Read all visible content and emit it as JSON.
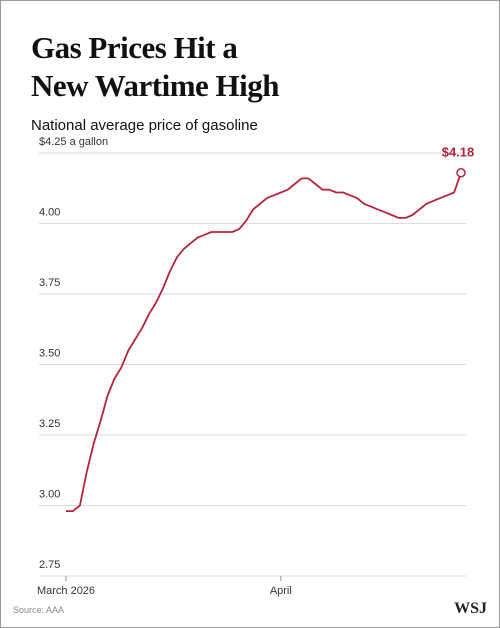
{
  "chart_data": {
    "type": "line",
    "title": "Gas Prices Hit a New Wartime High",
    "subtitle": "National average price of gasoline",
    "source": "Source: AAA",
    "logo": "WSJ",
    "color": "#b5253a",
    "grid": true,
    "categories": [
      "March 2026",
      null,
      null,
      null,
      null,
      null,
      null,
      null,
      null,
      null,
      null,
      null,
      null,
      null,
      null,
      null,
      null,
      null,
      null,
      null,
      null,
      null,
      null,
      null,
      null,
      null,
      null,
      null,
      null,
      null,
      null,
      "April",
      null,
      null,
      null,
      null,
      null,
      null,
      null,
      null,
      null,
      null,
      null,
      null,
      null,
      null,
      null,
      null,
      null,
      null,
      null,
      null,
      null,
      null,
      null,
      null,
      null,
      null
    ],
    "values": [
      2.98,
      2.98,
      3.0,
      3.12,
      3.22,
      3.3,
      3.39,
      3.45,
      3.49,
      3.55,
      3.59,
      3.63,
      3.68,
      3.72,
      3.77,
      3.83,
      3.88,
      3.91,
      3.93,
      3.95,
      3.96,
      3.97,
      3.97,
      3.97,
      3.97,
      3.98,
      4.01,
      4.05,
      4.07,
      4.09,
      4.1,
      4.11,
      4.12,
      4.14,
      4.16,
      4.16,
      4.14,
      4.12,
      4.12,
      4.11,
      4.11,
      4.1,
      4.09,
      4.07,
      4.06,
      4.05,
      4.04,
      4.03,
      4.02,
      4.02,
      4.03,
      4.05,
      4.07,
      4.08,
      4.09,
      4.1,
      4.11,
      4.18
    ],
    "value_labels": [
      null,
      null,
      null,
      null,
      null,
      null,
      null,
      null,
      null,
      null,
      null,
      null,
      null,
      null,
      null,
      null,
      null,
      null,
      null,
      null,
      null,
      null,
      null,
      null,
      null,
      null,
      null,
      null,
      null,
      null,
      null,
      null,
      null,
      null,
      null,
      null,
      null,
      null,
      null,
      null,
      null,
      null,
      null,
      null,
      null,
      null,
      null,
      null,
      null,
      null,
      null,
      null,
      null,
      null,
      null,
      null,
      null,
      "$4.18"
    ],
    "ylim": [
      2.75,
      4.25
    ],
    "yticks": [
      2.75,
      {
        "value": 3,
        "label": "3.00"
      },
      3.25,
      {
        "value": 3.5,
        "label": "3.50"
      },
      3.75,
      {
        "value": 4,
        "label": "4.00"
      },
      {
        "value": 4.25,
        "label": "$4.25 a gallon"
      }
    ]
  }
}
